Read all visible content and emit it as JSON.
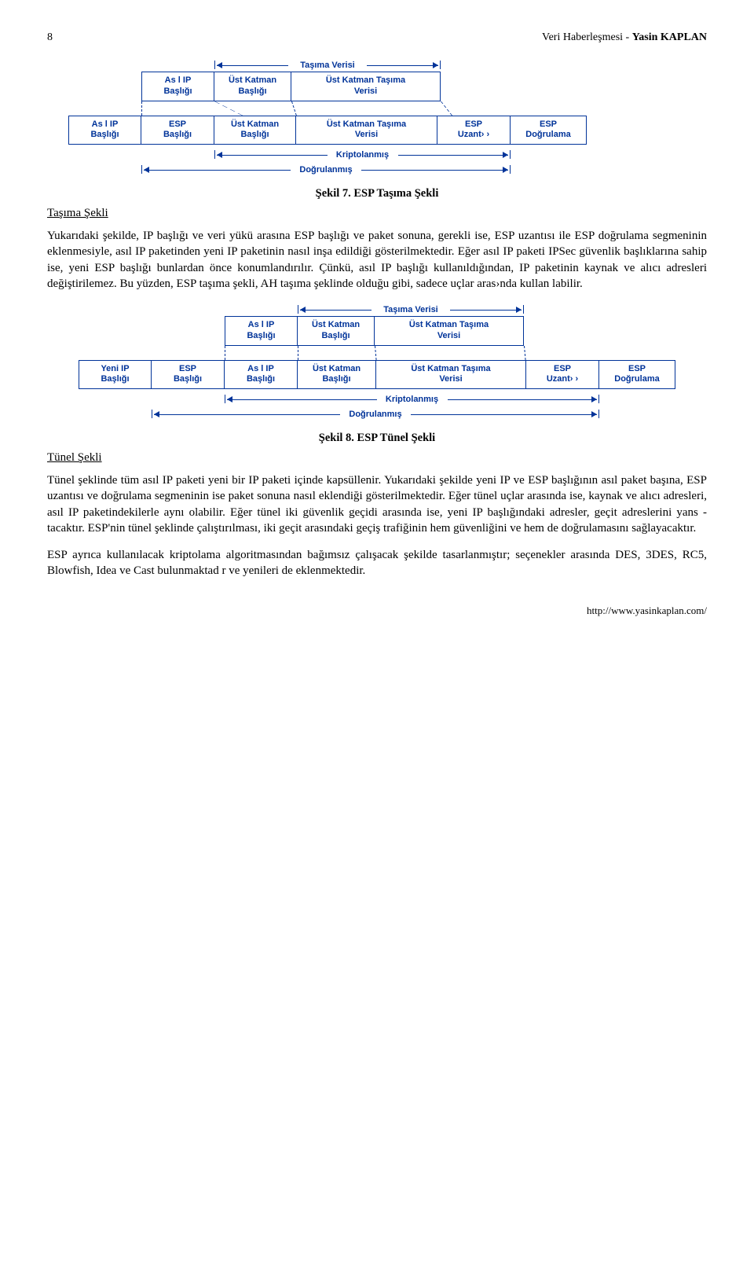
{
  "page_number": "8",
  "doc_title_plain": "Veri Haberleşmesi - ",
  "doc_author": "Yasin KAPLAN",
  "labels": {
    "asil_ip": "As l IP\nBaşlığı",
    "esp": "ESP\nBaşlığı",
    "ust_katman": "Üst Katman\nBaşlığı",
    "ust_katman_tasima": "Üst Katman Taşıma\nVerisi",
    "esp_uzant": "ESP\nUzant› ›",
    "esp_dogrulama": "ESP\nDoğrulama",
    "yeni_ip": "Yeni IP\nBaşlığı",
    "tasima_verisi": "Taşıma Verisi",
    "kriptolanmis": "Kriptolanmış",
    "dogrulanmis": "Doğrulanmış"
  },
  "fig7_caption": "Şekil 7. ESP Taşıma Şekli",
  "fig8_caption": "Şekil 8. ESP Tünel Şekli",
  "section1_title": "Taşıma Şekli",
  "section1_body": "Yukarıdaki şekilde, IP başlığı ve veri yükü arasına ESP başlığı ve paket sonuna, gerekli ise, ESP uzantısı ile ESP doğrulama segmeninin eklenmesiyle, asıl IP paketinden yeni IP paketinin nasıl inşa edildiği gösterilmektedir. Eğer asıl IP paketi IPSec güvenlik başlıklarına sahip ise, yeni ESP başlığı bunlardan önce konumlandırılır. Çünkü, asıl IP başlığı kullanıldığından, IP paketinin kaynak ve alıcı adresleri değiştirilemez. Bu yüzden, ESP taşıma şekli, AH taşıma şeklinde olduğu gibi, sadece uçlar aras›nda kullan labilir.",
  "section2_title": "Tünel Şekli",
  "section2_body1": "Tünel şeklinde tüm asıl IP paketi yeni bir IP paketi içinde kapsüllenir. Yukarıdaki şekilde yeni IP ve ESP başlığının asıl paket başına, ESP uzantısı ve doğrulama segmeninin ise paket sonuna nasıl eklendiği gösterilmektedir. Eğer tünel uçlar arasında ise, kaynak ve alıcı adresleri, asıl IP paketindekilerle aynı olabilir. Eğer tünel iki güvenlik geçidi arasında ise, yeni IP başlığındaki adresler, geçit adreslerini yans - tacaktır. ESP'nin tünel şeklinde çalıştırılması, iki geçit arasındaki geçiş trafiğinin hem güvenliğini ve hem de doğrulamasını sağlayacaktır.",
  "section2_body2": "ESP ayrıca kullanılacak kriptolama algoritmasından bağımsız çalışacak şekilde tasarlanmıştır; seçenekler arasında DES, 3DES, RC5, Blowfish, Idea ve Cast bulunmaktad r ve yenileri de eklenmektedir.",
  "footer_url": "http://www.yasinkaplan.com/"
}
